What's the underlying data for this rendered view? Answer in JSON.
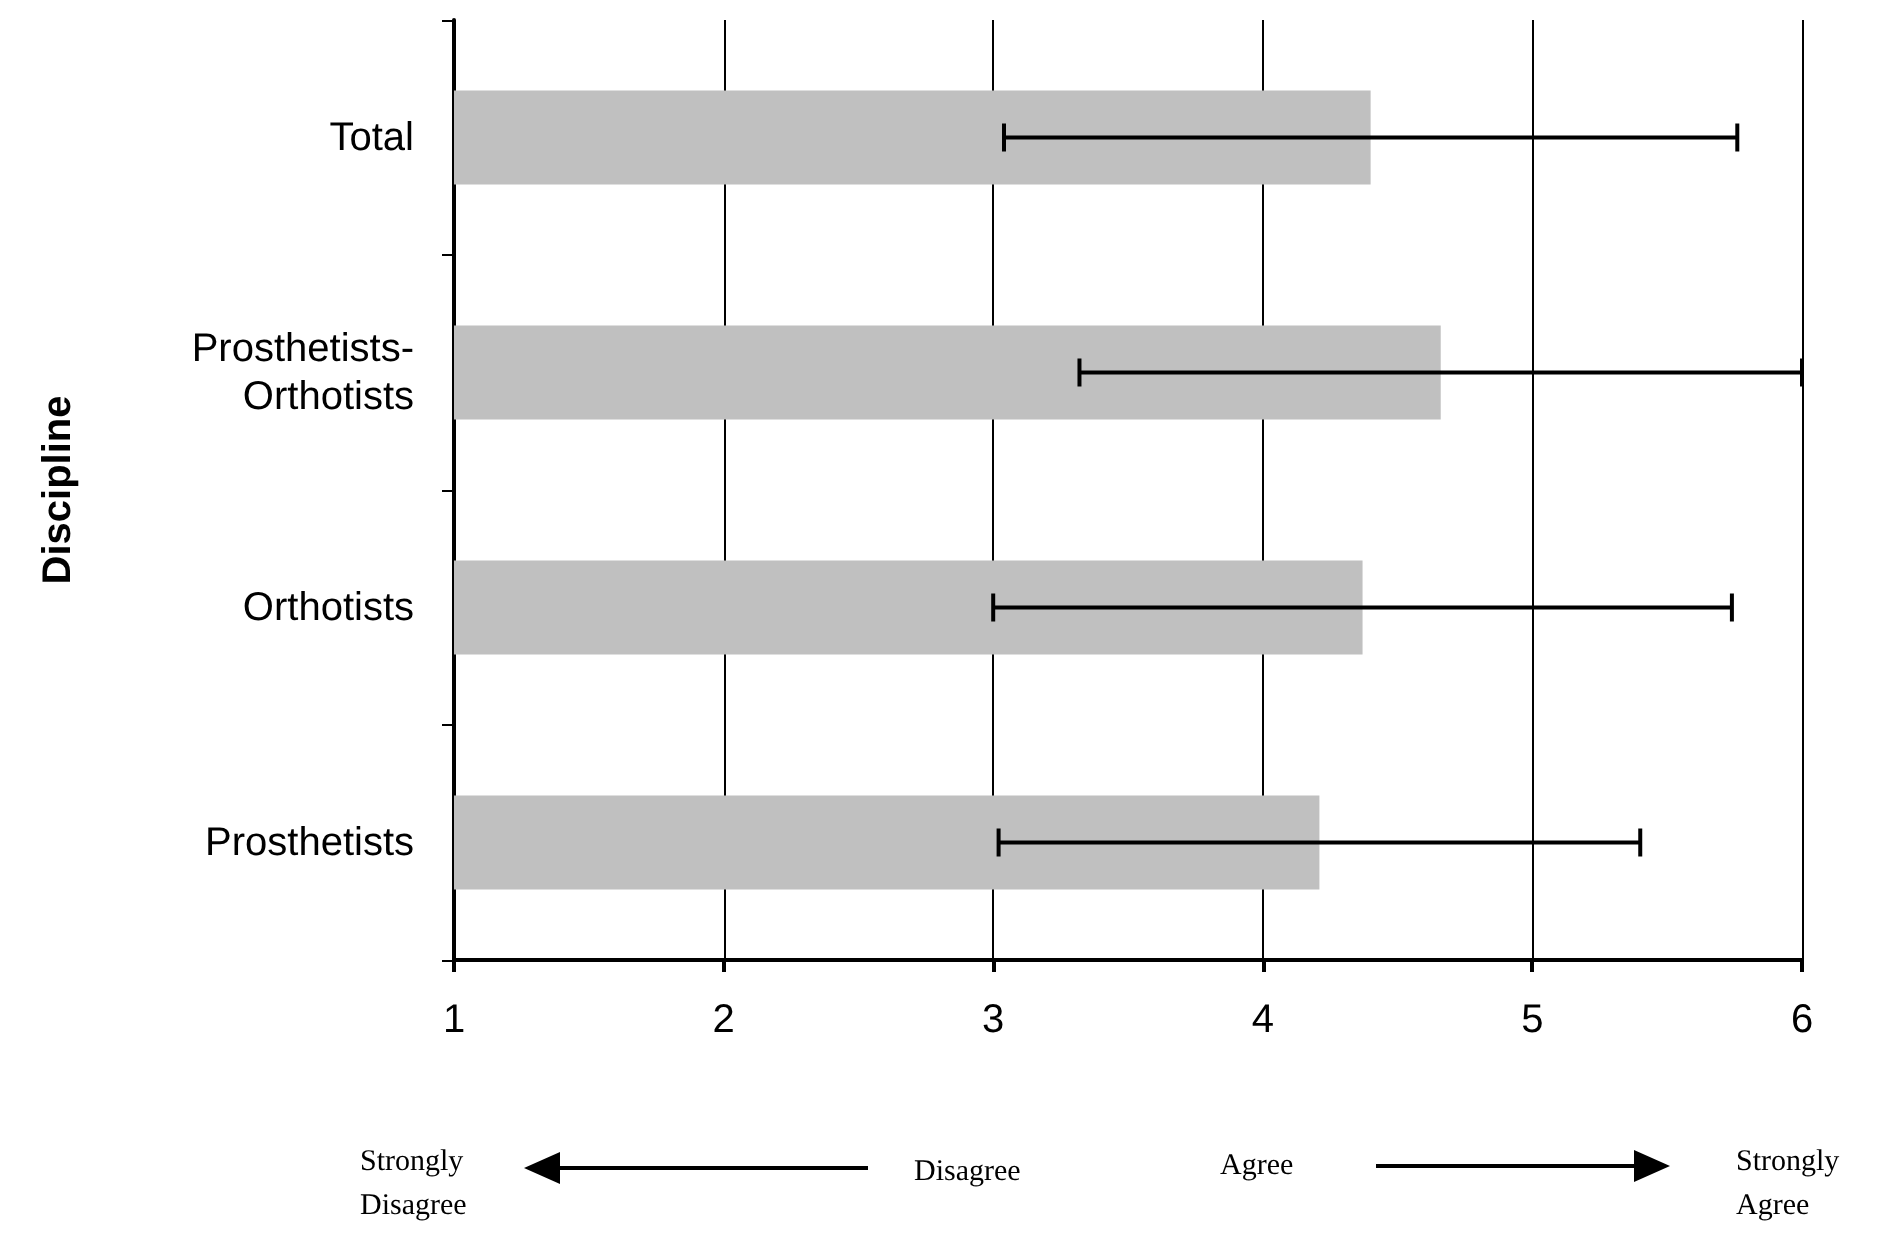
{
  "chart_data": {
    "type": "bar",
    "orientation": "horizontal",
    "ylabel": "Discipline",
    "categories": [
      "Total",
      "Prosthetists-\nOrthotists",
      "Orthotists",
      "Prosthetists"
    ],
    "values": [
      4.4,
      4.66,
      4.37,
      4.21
    ],
    "errors": [
      1.36,
      1.34,
      1.37,
      1.19
    ],
    "color": "#c0c0c0",
    "xlim": [
      1,
      6
    ],
    "xticks": [
      1,
      2,
      3,
      4,
      5,
      6
    ],
    "grid": "x",
    "annotations": [
      "Strongly\nDisagree",
      "Disagree",
      "Agree",
      "Strongly\nAgree"
    ]
  }
}
